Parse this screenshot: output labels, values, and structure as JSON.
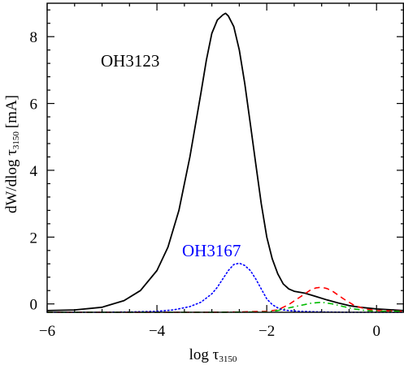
{
  "chart_data": {
    "type": "line",
    "title": "",
    "xlabel": {
      "main": "log τ",
      "sub": "3150"
    },
    "ylabel": {
      "main": "dW/dlog τ",
      "sub": "3150",
      "unit": "[mA]"
    },
    "xlim": [
      -6,
      0.5
    ],
    "ylim": [
      -0.25,
      9
    ],
    "x_ticks": [
      -6,
      -4,
      -2,
      0
    ],
    "y_ticks": [
      0,
      2,
      4,
      6,
      8
    ],
    "grid": false,
    "legend": "none",
    "annotations": [
      {
        "text": "OH3123",
        "color": "#000000"
      },
      {
        "text": "OH3167",
        "color": "#0000ff"
      }
    ],
    "series": [
      {
        "style": "solid",
        "color": "#000000",
        "x": [
          -6.0,
          -5.5,
          -5.0,
          -4.6,
          -4.3,
          -4.0,
          -3.8,
          -3.6,
          -3.4,
          -3.2,
          -3.1,
          -3.0,
          -2.9,
          -2.8,
          -2.75,
          -2.7,
          -2.6,
          -2.5,
          -2.4,
          -2.3,
          -2.2,
          -2.1,
          -2.0,
          -1.9,
          -1.8,
          -1.7,
          -1.6,
          -1.5,
          -1.3,
          -1.1,
          -0.9,
          -0.7,
          -0.5,
          -0.3,
          0.0,
          0.5
        ],
        "y": [
          -0.2,
          -0.18,
          -0.1,
          0.1,
          0.4,
          1.0,
          1.7,
          2.8,
          4.4,
          6.3,
          7.3,
          8.1,
          8.5,
          8.65,
          8.7,
          8.62,
          8.3,
          7.6,
          6.6,
          5.4,
          4.2,
          3.0,
          2.0,
          1.35,
          0.9,
          0.6,
          0.45,
          0.38,
          0.32,
          0.22,
          0.12,
          0.03,
          -0.05,
          -0.1,
          -0.15,
          -0.2
        ]
      },
      {
        "style": "dotted",
        "color": "#0000ff",
        "x": [
          -6.0,
          -5.0,
          -4.5,
          -4.0,
          -3.7,
          -3.4,
          -3.2,
          -3.0,
          -2.9,
          -2.8,
          -2.7,
          -2.6,
          -2.5,
          -2.4,
          -2.3,
          -2.2,
          -2.1,
          -2.0,
          -1.9,
          -1.8,
          -1.7,
          -1.6,
          -1.4,
          -1.2,
          -1.0,
          -0.5,
          0.0,
          0.5
        ],
        "y": [
          -0.25,
          -0.25,
          -0.24,
          -0.22,
          -0.18,
          -0.08,
          0.05,
          0.3,
          0.5,
          0.75,
          1.0,
          1.18,
          1.22,
          1.15,
          1.0,
          0.75,
          0.45,
          0.15,
          -0.02,
          -0.12,
          -0.18,
          -0.2,
          -0.22,
          -0.23,
          -0.24,
          -0.25,
          -0.25,
          -0.25
        ]
      },
      {
        "style": "dashed",
        "color": "#ff0000",
        "x": [
          -6.0,
          -3.0,
          -2.5,
          -2.0,
          -1.8,
          -1.6,
          -1.4,
          -1.2,
          -1.1,
          -1.0,
          -0.9,
          -0.8,
          -0.6,
          -0.4,
          -0.2,
          0.0,
          0.5
        ],
        "y": [
          -0.25,
          -0.25,
          -0.24,
          -0.22,
          -0.18,
          -0.02,
          0.2,
          0.42,
          0.48,
          0.5,
          0.46,
          0.38,
          0.15,
          -0.05,
          -0.15,
          -0.2,
          -0.22
        ]
      },
      {
        "style": "dashdot",
        "color": "#00bb00",
        "x": [
          -6.0,
          -3.0,
          -2.0,
          -1.8,
          -1.6,
          -1.4,
          -1.2,
          -1.0,
          -0.8,
          -0.6,
          -0.4,
          -0.2,
          0.0,
          0.5
        ],
        "y": [
          -0.25,
          -0.25,
          -0.24,
          -0.2,
          -0.12,
          -0.05,
          0.02,
          0.05,
          0.0,
          -0.08,
          -0.15,
          -0.2,
          -0.22,
          -0.22
        ]
      }
    ]
  }
}
